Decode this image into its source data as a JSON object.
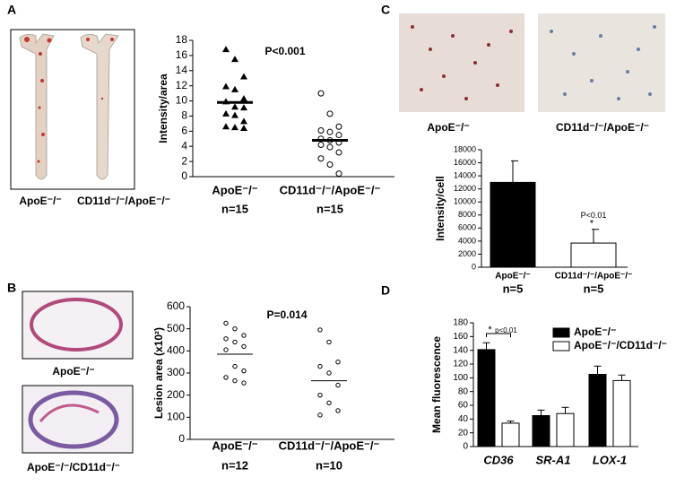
{
  "figure": {
    "panel_labels": [
      "A",
      "B",
      "C",
      "D"
    ],
    "image_labels": [
      "ApoE⁻/⁻",
      "CD11d⁻/⁻/ApoE⁻/⁻",
      "ApoE⁻/⁻",
      "ApoE⁻/⁻/CD11d⁻/⁻",
      "ApoE⁻/⁻",
      "CD11d⁻/⁻/ApoE⁻/⁻"
    ]
  },
  "chart_data": [
    {
      "type": "dot",
      "y_label": "Intensity/area",
      "annotation": "P<0.001",
      "categories": [
        "ApoE⁻/⁻",
        "CD11d⁻/⁻/ApoE⁻/⁻"
      ],
      "n_labels": [
        "n=15",
        "n=15"
      ],
      "groups": [
        {
          "marker": "triangle",
          "values": [
            16.8,
            15.5,
            13.2,
            11.9,
            11.5,
            10.3,
            9.9,
            9.2,
            9.1,
            8.3,
            8.1,
            7.3,
            6.6,
            6.5,
            6.4
          ],
          "mean": 9.8
        },
        {
          "marker": "circle",
          "values": [
            11,
            8.3,
            6.6,
            6.1,
            5.9,
            5.5,
            5,
            4.8,
            4.5,
            4.2,
            3.9,
            3.2,
            2.4,
            1.6,
            0.4
          ],
          "mean": 4.8
        }
      ],
      "ylim": [
        0,
        18
      ],
      "yticks": [
        0,
        2,
        4,
        6,
        8,
        10,
        12,
        14,
        16,
        18
      ]
    },
    {
      "type": "dot",
      "y_label": "Lesion area (x10²)",
      "annotation": "P=0.014",
      "categories": [
        "ApoE⁻/⁻",
        "CD11d⁻/⁻/ApoE⁻/⁻"
      ],
      "n_labels": [
        "n=12",
        "n=10"
      ],
      "groups": [
        {
          "marker": "circle",
          "values": [
            525,
            500,
            470,
            455,
            440,
            420,
            405,
            330,
            310,
            280,
            265,
            255
          ],
          "mean": 385
        },
        {
          "marker": "circle",
          "values": [
            495,
            440,
            350,
            330,
            300,
            245,
            200,
            165,
            130,
            110
          ],
          "mean": 265
        }
      ],
      "ylim": [
        0,
        600
      ],
      "yticks": [
        0,
        100,
        200,
        300,
        400,
        500,
        600
      ]
    },
    {
      "type": "bar",
      "y_label": "Intensity/cell",
      "annotations": [
        "P<0.01",
        "*"
      ],
      "categories": [
        "ApoE⁻/⁻",
        "CD11d⁻/⁻/ApoE⁻/⁻"
      ],
      "n_labels": [
        "n=5",
        "n=5"
      ],
      "values": [
        13000,
        3700
      ],
      "errors": [
        3300,
        2100
      ],
      "colors": [
        "#000000",
        "#ffffff"
      ],
      "ylim": [
        0,
        18000
      ],
      "yticks": [
        0,
        2000,
        4000,
        6000,
        8000,
        10000,
        12000,
        14000,
        16000,
        18000
      ]
    },
    {
      "type": "grouped-bar",
      "y_label": "Mean fluorescence",
      "annotations": [
        "*",
        "p<0.01"
      ],
      "categories": [
        "CD36",
        "SR-A1",
        "LOX-1"
      ],
      "series": [
        {
          "name": "ApoE⁻/⁻",
          "color": "#000000",
          "values": [
            141,
            45,
            105
          ],
          "errors": [
            10,
            8,
            12
          ]
        },
        {
          "name": "ApoE⁻/⁻/CD11d⁻/⁻",
          "color": "#ffffff",
          "values": [
            34,
            48,
            96
          ],
          "errors": [
            3,
            9,
            8
          ]
        }
      ],
      "ylim": [
        0,
        180
      ],
      "yticks": [
        0,
        20,
        40,
        60,
        80,
        100,
        120,
        140,
        160,
        180
      ],
      "legend": "top-right"
    }
  ]
}
